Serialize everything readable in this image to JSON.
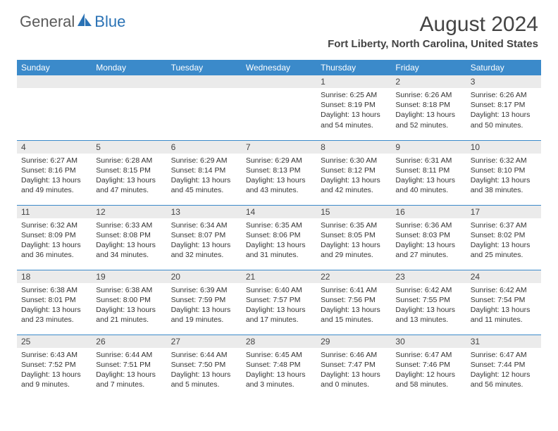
{
  "brand": {
    "part1": "General",
    "part2": "Blue"
  },
  "title": "August 2024",
  "location": "Fort Liberty, North Carolina, United States",
  "colors": {
    "header_band": "#3b8aca",
    "daynum_bg": "#ebebeb",
    "text": "#444444",
    "brand_blue": "#2a72b5"
  },
  "dayHeaders": [
    "Sunday",
    "Monday",
    "Tuesday",
    "Wednesday",
    "Thursday",
    "Friday",
    "Saturday"
  ],
  "weeks": [
    [
      null,
      null,
      null,
      null,
      {
        "n": "1",
        "sr": "Sunrise: 6:25 AM",
        "ss": "Sunset: 8:19 PM",
        "d1": "Daylight: 13 hours",
        "d2": "and 54 minutes."
      },
      {
        "n": "2",
        "sr": "Sunrise: 6:26 AM",
        "ss": "Sunset: 8:18 PM",
        "d1": "Daylight: 13 hours",
        "d2": "and 52 minutes."
      },
      {
        "n": "3",
        "sr": "Sunrise: 6:26 AM",
        "ss": "Sunset: 8:17 PM",
        "d1": "Daylight: 13 hours",
        "d2": "and 50 minutes."
      }
    ],
    [
      {
        "n": "4",
        "sr": "Sunrise: 6:27 AM",
        "ss": "Sunset: 8:16 PM",
        "d1": "Daylight: 13 hours",
        "d2": "and 49 minutes."
      },
      {
        "n": "5",
        "sr": "Sunrise: 6:28 AM",
        "ss": "Sunset: 8:15 PM",
        "d1": "Daylight: 13 hours",
        "d2": "and 47 minutes."
      },
      {
        "n": "6",
        "sr": "Sunrise: 6:29 AM",
        "ss": "Sunset: 8:14 PM",
        "d1": "Daylight: 13 hours",
        "d2": "and 45 minutes."
      },
      {
        "n": "7",
        "sr": "Sunrise: 6:29 AM",
        "ss": "Sunset: 8:13 PM",
        "d1": "Daylight: 13 hours",
        "d2": "and 43 minutes."
      },
      {
        "n": "8",
        "sr": "Sunrise: 6:30 AM",
        "ss": "Sunset: 8:12 PM",
        "d1": "Daylight: 13 hours",
        "d2": "and 42 minutes."
      },
      {
        "n": "9",
        "sr": "Sunrise: 6:31 AM",
        "ss": "Sunset: 8:11 PM",
        "d1": "Daylight: 13 hours",
        "d2": "and 40 minutes."
      },
      {
        "n": "10",
        "sr": "Sunrise: 6:32 AM",
        "ss": "Sunset: 8:10 PM",
        "d1": "Daylight: 13 hours",
        "d2": "and 38 minutes."
      }
    ],
    [
      {
        "n": "11",
        "sr": "Sunrise: 6:32 AM",
        "ss": "Sunset: 8:09 PM",
        "d1": "Daylight: 13 hours",
        "d2": "and 36 minutes."
      },
      {
        "n": "12",
        "sr": "Sunrise: 6:33 AM",
        "ss": "Sunset: 8:08 PM",
        "d1": "Daylight: 13 hours",
        "d2": "and 34 minutes."
      },
      {
        "n": "13",
        "sr": "Sunrise: 6:34 AM",
        "ss": "Sunset: 8:07 PM",
        "d1": "Daylight: 13 hours",
        "d2": "and 32 minutes."
      },
      {
        "n": "14",
        "sr": "Sunrise: 6:35 AM",
        "ss": "Sunset: 8:06 PM",
        "d1": "Daylight: 13 hours",
        "d2": "and 31 minutes."
      },
      {
        "n": "15",
        "sr": "Sunrise: 6:35 AM",
        "ss": "Sunset: 8:05 PM",
        "d1": "Daylight: 13 hours",
        "d2": "and 29 minutes."
      },
      {
        "n": "16",
        "sr": "Sunrise: 6:36 AM",
        "ss": "Sunset: 8:03 PM",
        "d1": "Daylight: 13 hours",
        "d2": "and 27 minutes."
      },
      {
        "n": "17",
        "sr": "Sunrise: 6:37 AM",
        "ss": "Sunset: 8:02 PM",
        "d1": "Daylight: 13 hours",
        "d2": "and 25 minutes."
      }
    ],
    [
      {
        "n": "18",
        "sr": "Sunrise: 6:38 AM",
        "ss": "Sunset: 8:01 PM",
        "d1": "Daylight: 13 hours",
        "d2": "and 23 minutes."
      },
      {
        "n": "19",
        "sr": "Sunrise: 6:38 AM",
        "ss": "Sunset: 8:00 PM",
        "d1": "Daylight: 13 hours",
        "d2": "and 21 minutes."
      },
      {
        "n": "20",
        "sr": "Sunrise: 6:39 AM",
        "ss": "Sunset: 7:59 PM",
        "d1": "Daylight: 13 hours",
        "d2": "and 19 minutes."
      },
      {
        "n": "21",
        "sr": "Sunrise: 6:40 AM",
        "ss": "Sunset: 7:57 PM",
        "d1": "Daylight: 13 hours",
        "d2": "and 17 minutes."
      },
      {
        "n": "22",
        "sr": "Sunrise: 6:41 AM",
        "ss": "Sunset: 7:56 PM",
        "d1": "Daylight: 13 hours",
        "d2": "and 15 minutes."
      },
      {
        "n": "23",
        "sr": "Sunrise: 6:42 AM",
        "ss": "Sunset: 7:55 PM",
        "d1": "Daylight: 13 hours",
        "d2": "and 13 minutes."
      },
      {
        "n": "24",
        "sr": "Sunrise: 6:42 AM",
        "ss": "Sunset: 7:54 PM",
        "d1": "Daylight: 13 hours",
        "d2": "and 11 minutes."
      }
    ],
    [
      {
        "n": "25",
        "sr": "Sunrise: 6:43 AM",
        "ss": "Sunset: 7:52 PM",
        "d1": "Daylight: 13 hours",
        "d2": "and 9 minutes."
      },
      {
        "n": "26",
        "sr": "Sunrise: 6:44 AM",
        "ss": "Sunset: 7:51 PM",
        "d1": "Daylight: 13 hours",
        "d2": "and 7 minutes."
      },
      {
        "n": "27",
        "sr": "Sunrise: 6:44 AM",
        "ss": "Sunset: 7:50 PM",
        "d1": "Daylight: 13 hours",
        "d2": "and 5 minutes."
      },
      {
        "n": "28",
        "sr": "Sunrise: 6:45 AM",
        "ss": "Sunset: 7:48 PM",
        "d1": "Daylight: 13 hours",
        "d2": "and 3 minutes."
      },
      {
        "n": "29",
        "sr": "Sunrise: 6:46 AM",
        "ss": "Sunset: 7:47 PM",
        "d1": "Daylight: 13 hours",
        "d2": "and 0 minutes."
      },
      {
        "n": "30",
        "sr": "Sunrise: 6:47 AM",
        "ss": "Sunset: 7:46 PM",
        "d1": "Daylight: 12 hours",
        "d2": "and 58 minutes."
      },
      {
        "n": "31",
        "sr": "Sunrise: 6:47 AM",
        "ss": "Sunset: 7:44 PM",
        "d1": "Daylight: 12 hours",
        "d2": "and 56 minutes."
      }
    ]
  ]
}
